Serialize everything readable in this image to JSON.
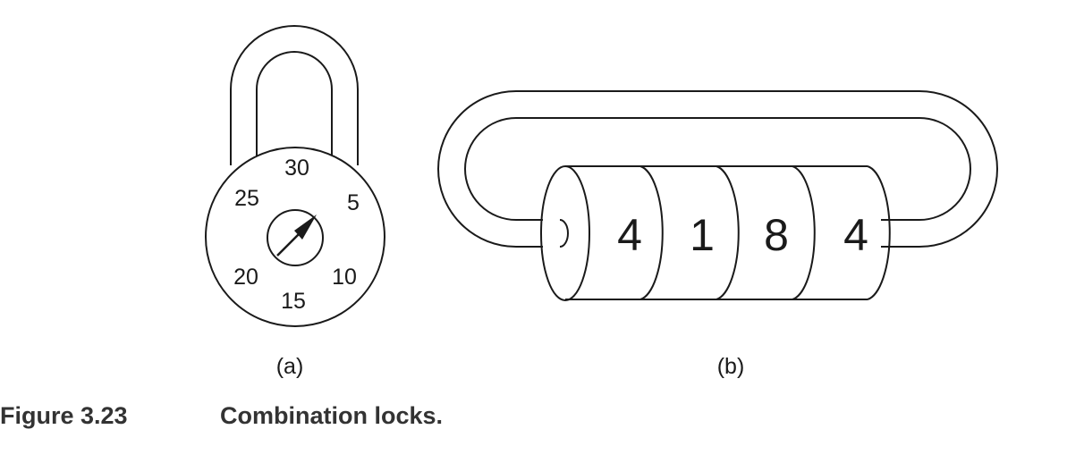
{
  "figure": {
    "number": "Figure 3.23",
    "title": "Combination locks."
  },
  "padlock": {
    "label": "(a)",
    "dial_numbers": [
      "30",
      "5",
      "10",
      "15",
      "20",
      "25"
    ]
  },
  "cable_lock": {
    "label": "(b)",
    "wheel_digits": [
      "4",
      "1",
      "8",
      "4"
    ]
  }
}
